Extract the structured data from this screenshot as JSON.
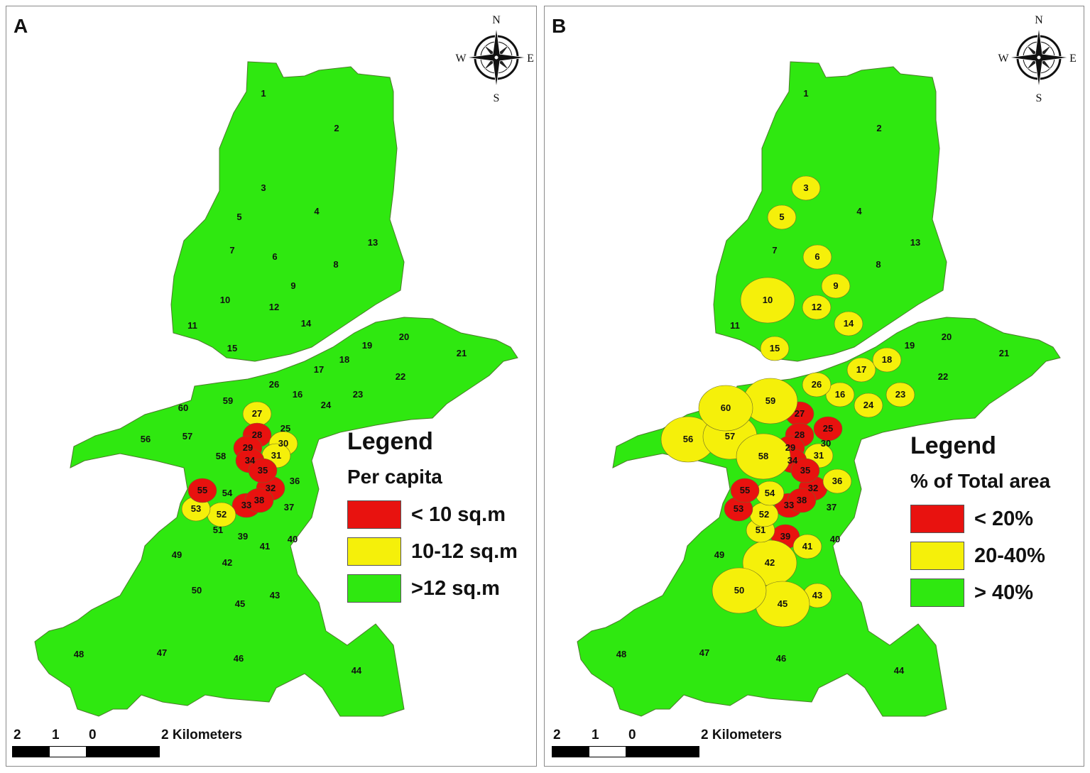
{
  "colors": {
    "red": "#e8120f",
    "yellow": "#f5f00a",
    "green": "#2fe810",
    "border": "#4a7a2a"
  },
  "panels": [
    {
      "id": "A",
      "letter": "A",
      "legend": {
        "title": "Legend",
        "subtitle": "Per capita",
        "items": [
          {
            "color": "red",
            "label": "< 10 sq.m"
          },
          {
            "color": "yellow",
            "label": "10-12 sq.m"
          },
          {
            "color": "green",
            "label": ">12 sq.m"
          }
        ]
      },
      "compass": {
        "n": "N",
        "s": "S",
        "e": "E",
        "w": "W"
      },
      "scale": {
        "ticks": [
          "2",
          "1",
          "0",
          "2 Kilometers"
        ]
      },
      "yellow_districts": [
        "27",
        "30",
        "31",
        "52",
        "53"
      ],
      "red_districts": [
        "28",
        "29",
        "32",
        "33",
        "34",
        "35",
        "38",
        "55"
      ]
    },
    {
      "id": "B",
      "letter": "B",
      "legend": {
        "title": "Legend",
        "subtitle": "% of Total area",
        "items": [
          {
            "color": "red",
            "label": "< 20%"
          },
          {
            "color": "yellow",
            "label": "20-40%"
          },
          {
            "color": "green",
            "label": "> 40%"
          }
        ]
      },
      "compass": {
        "n": "N",
        "s": "S",
        "e": "E",
        "w": "W"
      },
      "scale": {
        "ticks": [
          "2",
          "1",
          "0",
          "2 Kilometers"
        ]
      },
      "yellow_districts": [
        "3",
        "5",
        "6",
        "9",
        "10",
        "12",
        "14",
        "15",
        "16",
        "17",
        "18",
        "23",
        "24",
        "26",
        "31",
        "36",
        "41",
        "42",
        "43",
        "45",
        "50",
        "51",
        "52",
        "54",
        "56",
        "57",
        "58",
        "59",
        "60"
      ],
      "red_districts": [
        "25",
        "27",
        "28",
        "29",
        "32",
        "33",
        "34",
        "35",
        "38",
        "39",
        "53",
        "55"
      ]
    }
  ]
}
